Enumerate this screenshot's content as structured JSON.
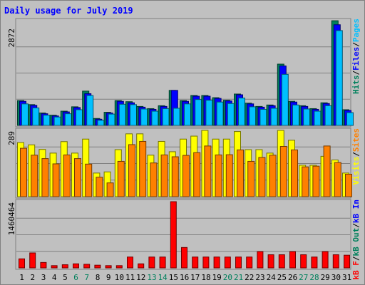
{
  "chart_data": {
    "type": "bar",
    "title": "Daily usage for July 2019",
    "categories": [
      "1",
      "2",
      "3",
      "4",
      "5",
      "6",
      "7",
      "8",
      "9",
      "10",
      "11",
      "12",
      "13",
      "14",
      "15",
      "16",
      "17",
      "18",
      "19",
      "20",
      "21",
      "22",
      "23",
      "24",
      "25",
      "26",
      "27",
      "28",
      "29",
      "30",
      "31"
    ],
    "weekend_days": [
      "6",
      "7",
      "13",
      "14",
      "20",
      "21",
      "27",
      "28"
    ],
    "colors": {
      "background": "#c0c0c0",
      "frame": "#808080",
      "title": "#0000ff",
      "weekday_label": "#000000",
      "weekend_label": "#00805c",
      "hits": "#00805c",
      "files": "#0000ff",
      "pages": "#00c0ff",
      "visits": "#ffff00",
      "sites": "#ff8000",
      "kbytes": "#ff0000",
      "kbytes_in": "#0000ff",
      "kbytes_out": "#00805c",
      "kbytes_files": "#ff8000"
    },
    "panels": [
      {
        "id": "hits",
        "max_label": "2872",
        "ylim": [
          0,
          2872
        ],
        "legend": [
          {
            "key": "hits_label",
            "text": "Hits",
            "color": "#00805c"
          },
          {
            "key": "sep1",
            "text": "/",
            "color": "#000000"
          },
          {
            "key": "files_label",
            "text": "Files",
            "color": "#0000ff"
          },
          {
            "key": "sep2",
            "text": "/",
            "color": "#000000"
          },
          {
            "key": "pages_label",
            "text": "Pages",
            "color": "#00c0ff"
          }
        ],
        "series": [
          {
            "name": "Hits",
            "color": "#00805c",
            "values": [
              680,
              570,
              340,
              280,
              390,
              510,
              940,
              190,
              360,
              680,
              650,
              520,
              460,
              540,
              960,
              680,
              820,
              820,
              760,
              690,
              860,
              610,
              520,
              560,
              1680,
              660,
              540,
              460,
              620,
              2870,
              430
            ]
          },
          {
            "name": "Files",
            "color": "#0000ff",
            "values": [
              660,
              550,
              320,
              260,
              370,
              490,
              870,
              170,
              340,
              660,
              620,
              500,
              440,
              520,
              960,
              660,
              800,
              800,
              740,
              670,
              840,
              590,
              500,
              540,
              1630,
              640,
              520,
              440,
              600,
              2760,
              410
            ]
          },
          {
            "name": "Pages",
            "color": "#00c0ff",
            "values": [
              590,
              480,
              280,
              230,
              320,
              430,
              820,
              140,
              310,
              580,
              570,
              450,
              390,
              460,
              470,
              590,
              710,
              690,
              640,
              600,
              750,
              510,
              440,
              470,
              1400,
              560,
              450,
              390,
              540,
              2600,
              350
            ]
          }
        ]
      },
      {
        "id": "visits",
        "max_label": "289",
        "ylim": [
          0,
          289
        ],
        "legend": [
          {
            "key": "visits_label",
            "text": "Visits",
            "color": "#ffff00"
          },
          {
            "key": "sep3",
            "text": "/",
            "color": "#000000"
          },
          {
            "key": "sites_label",
            "text": "Sites",
            "color": "#ff8000"
          }
        ],
        "series": [
          {
            "name": "Visits",
            "color": "#ffff00",
            "values": [
              236,
              226,
              206,
              190,
              240,
              190,
              251,
              103,
              108,
              205,
              274,
              274,
              181,
              241,
              196,
              251,
              264,
              289,
              251,
              251,
              284,
              205,
              205,
              190,
              289,
              246,
              137,
              137,
              176,
              160,
              103
            ]
          },
          {
            "name": "Sites",
            "color": "#ffff00",
            "values": []
          },
          {
            "name": "Sites",
            "color": "#ff8000",
            "values": [
              211,
              181,
              166,
              143,
              182,
              166,
              142,
              85,
              60,
              154,
              227,
              241,
              147,
              182,
              174,
              180,
              192,
              221,
              182,
              183,
              204,
              154,
              171,
              181,
              219,
              204,
              130,
              133,
              221,
              149,
              98
            ]
          }
        ]
      },
      {
        "id": "kbytes",
        "max_label": "1460464",
        "ylim": [
          0,
          1460464
        ],
        "legend": [
          {
            "key": "kbf_label",
            "text": "kB F",
            "color": "#ff0000"
          },
          {
            "key": "sep4",
            "text": "/",
            "color": "#000000"
          },
          {
            "key": "kbo_label",
            "text": "kB Out",
            "color": "#00805c"
          },
          {
            "key": "sep5",
            "text": "/",
            "color": "#000000"
          },
          {
            "key": "kbi_label",
            "text": "kB In",
            "color": "#0000ff"
          }
        ],
        "series": [
          {
            "name": "kB F",
            "color": "#ff0000",
            "values": [
              200000,
              330000,
              120000,
              50000,
              70000,
              90000,
              80000,
              60000,
              50000,
              50000,
              240000,
              90000,
              240000,
              240000,
              1460000,
              450000,
              240000,
              240000,
              240000,
              240000,
              240000,
              240000,
              360000,
              290000,
              290000,
              360000,
              290000,
              240000,
              360000,
              290000,
              280000
            ]
          }
        ]
      }
    ]
  }
}
